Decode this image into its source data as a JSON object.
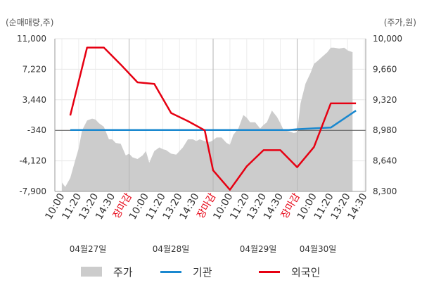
{
  "chart_data": {
    "type": "line",
    "left_axis_label": "(순매매량,주)",
    "right_axis_label": "(주가,원)",
    "left_ticks": [
      "11,000",
      "7,220",
      "3,440",
      "-340",
      "-4,120",
      "-7,900"
    ],
    "right_ticks": [
      "10,000",
      "9,660",
      "9,320",
      "8,980",
      "8,640",
      "8,300"
    ],
    "left_ylim": [
      -7900,
      11000
    ],
    "right_ylim": [
      8300,
      10000
    ],
    "x_tick_labels": [
      {
        "text": "10:00",
        "color": "#333333"
      },
      {
        "text": "11:20",
        "color": "#333333"
      },
      {
        "text": "13:20",
        "color": "#333333"
      },
      {
        "text": "14:30",
        "color": "#333333"
      },
      {
        "text": "장마감",
        "color": "#e60012"
      },
      {
        "text": "10:00",
        "color": "#333333"
      },
      {
        "text": "11:20",
        "color": "#333333"
      },
      {
        "text": "13:20",
        "color": "#333333"
      },
      {
        "text": "14:30",
        "color": "#333333"
      },
      {
        "text": "장마감",
        "color": "#e60012"
      },
      {
        "text": "10:00",
        "color": "#333333"
      },
      {
        "text": "11:20",
        "color": "#333333"
      },
      {
        "text": "13:20",
        "color": "#333333"
      },
      {
        "text": "14:30",
        "color": "#333333"
      },
      {
        "text": "장마감",
        "color": "#e60012"
      },
      {
        "text": "10:00",
        "color": "#333333"
      },
      {
        "text": "11:20",
        "color": "#333333"
      },
      {
        "text": "13:20",
        "color": "#333333"
      },
      {
        "text": "14:30",
        "color": "#333333"
      }
    ],
    "date_labels": [
      "04월27일",
      "04월28일",
      "04월29일",
      "04월30일"
    ],
    "series": [
      {
        "name": "주가",
        "axis": "right",
        "color": "#cccccc",
        "style": "area",
        "x": [
          0,
          0.2,
          0.5,
          0.8,
          1.0,
          1.2,
          1.5,
          1.8,
          2.0,
          2.2,
          2.5,
          2.8,
          3.0,
          3.2,
          3.5,
          3.8,
          4.0,
          4.2,
          4.5,
          4.8,
          5.0,
          5.2,
          5.5,
          5.8,
          6.0,
          6.2,
          6.5,
          6.8,
          7.0,
          7.2,
          7.5,
          7.8,
          8.0,
          8.2,
          8.5,
          8.8,
          9.0,
          9.2,
          9.5,
          9.8,
          10.0,
          10.2,
          10.5,
          10.8,
          11.0,
          11.2,
          11.5,
          11.8,
          12.0,
          12.2,
          12.5,
          12.8,
          13.0,
          13.2,
          13.5,
          13.8,
          14.0,
          14.2,
          14.5,
          14.8,
          15.0,
          15.2,
          15.5,
          15.8,
          16.0,
          16.2,
          16.5,
          16.8,
          17.0,
          17.3
        ],
        "y": [
          8400,
          8350,
          8450,
          8650,
          8780,
          8980,
          9090,
          9110,
          9100,
          9060,
          9020,
          8880,
          8880,
          8840,
          8830,
          8700,
          8720,
          8680,
          8660,
          8700,
          8750,
          8620,
          8750,
          8790,
          8770,
          8760,
          8720,
          8710,
          8750,
          8790,
          8880,
          8880,
          8860,
          8880,
          8860,
          8850,
          8870,
          8900,
          8900,
          8840,
          8820,
          8930,
          9000,
          9150,
          9120,
          9070,
          9070,
          9000,
          9040,
          9070,
          9200,
          9130,
          9060,
          8980,
          8970,
          8950,
          8960,
          9280,
          9500,
          9620,
          9720,
          9750,
          9800,
          9850,
          9900,
          9900,
          9890,
          9900,
          9870,
          9850
        ]
      },
      {
        "name": "기관",
        "axis": "left",
        "color": "#1a88cf",
        "style": "line",
        "x": [
          0.5,
          3.0,
          6.0,
          9.0,
          12.0,
          13.5,
          14.0,
          15.0,
          16.0,
          17.5
        ],
        "y": [
          -300,
          -300,
          -300,
          -300,
          -300,
          -300,
          -200,
          -100,
          0,
          2100
        ]
      },
      {
        "name": "외국인",
        "axis": "left",
        "color": "#e60012",
        "style": "line",
        "x": [
          0.5,
          1.5,
          2.5,
          3.5,
          4.5,
          5.5,
          6.5,
          7.5,
          8.5,
          9.0,
          10.0,
          11.0,
          12.0,
          13.0,
          14.0,
          15.0,
          16.0,
          17.5
        ],
        "y": [
          1500,
          9900,
          9900,
          7800,
          5600,
          5400,
          1800,
          800,
          -340,
          -5300,
          -7700,
          -4800,
          -2800,
          -2800,
          -4900,
          -2400,
          3000,
          3000
        ]
      }
    ],
    "legend": [
      "주가",
      "기관",
      "외국인"
    ],
    "grid": true,
    "legend_placement": "bottom"
  }
}
